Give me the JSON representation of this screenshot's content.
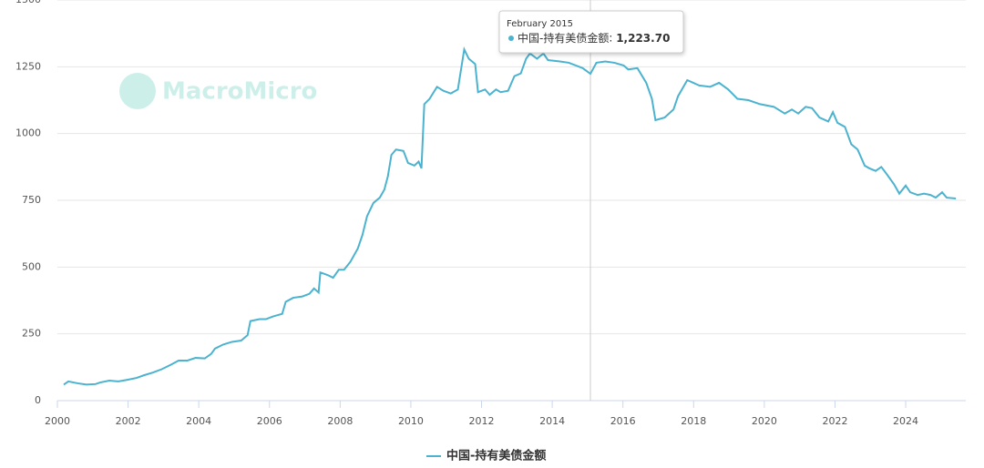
{
  "chart_data": {
    "type": "line",
    "watermark": "MacroMicro",
    "x": [
      2000.18,
      2000.31,
      2000.57,
      2000.82,
      2001.08,
      2001.21,
      2001.47,
      2001.73,
      2001.98,
      2002.24,
      2002.45,
      2002.7,
      2002.96,
      2003.22,
      2003.43,
      2003.68,
      2003.91,
      2004.17,
      2004.35,
      2004.46,
      2004.69,
      2004.94,
      2005.2,
      2005.38,
      2005.46,
      2005.72,
      2005.9,
      2006.1,
      2006.36,
      2006.46,
      2006.67,
      2006.93,
      2007.13,
      2007.26,
      2007.39,
      2007.44,
      2007.65,
      2007.8,
      2007.96,
      2008.11,
      2008.29,
      2008.5,
      2008.63,
      2008.76,
      2008.94,
      2009.12,
      2009.25,
      2009.35,
      2009.45,
      2009.58,
      2009.79,
      2009.92,
      2010.1,
      2010.22,
      2010.3,
      2010.38,
      2010.53,
      2010.74,
      2010.92,
      2011.13,
      2011.33,
      2011.51,
      2011.64,
      2011.82,
      2011.9,
      2012.1,
      2012.23,
      2012.41,
      2012.54,
      2012.75,
      2012.93,
      2013.11,
      2013.26,
      2013.37,
      2013.57,
      2013.75,
      2013.88,
      2014.22,
      2014.47,
      2014.86,
      2015.08,
      2015.25,
      2015.5,
      2015.76,
      2016.02,
      2016.15,
      2016.41,
      2016.66,
      2016.82,
      2016.92,
      2017.18,
      2017.43,
      2017.56,
      2017.82,
      2018.16,
      2018.47,
      2018.72,
      2018.98,
      2019.24,
      2019.55,
      2019.88,
      2020.27,
      2020.58,
      2020.78,
      2020.96,
      2021.17,
      2021.35,
      2021.56,
      2021.81,
      2021.94,
      2022.07,
      2022.28,
      2022.46,
      2022.64,
      2022.84,
      2022.97,
      2023.15,
      2023.31,
      2023.48,
      2023.67,
      2023.82,
      2024.0,
      2024.13,
      2024.34,
      2024.52,
      2024.7,
      2024.85,
      2025.03,
      2025.16,
      2025.42
    ],
    "series": [
      {
        "name": "中国-持有美债金额",
        "color": "#4bb3cf",
        "values": [
          60,
          72,
          65,
          60,
          62,
          68,
          75,
          72,
          78,
          85,
          95,
          105,
          118,
          135,
          150,
          150,
          160,
          158,
          175,
          195,
          210,
          220,
          225,
          245,
          298,
          305,
          305,
          315,
          325,
          370,
          385,
          390,
          400,
          420,
          405,
          480,
          470,
          460,
          490,
          490,
          520,
          570,
          620,
          690,
          740,
          760,
          790,
          840,
          920,
          940,
          935,
          890,
          880,
          895,
          870,
          1110,
          1130,
          1175,
          1160,
          1150,
          1165,
          1315,
          1280,
          1260,
          1155,
          1165,
          1145,
          1165,
          1155,
          1160,
          1215,
          1225,
          1280,
          1300,
          1280,
          1300,
          1275,
          1270,
          1265,
          1245,
          1223.7,
          1265,
          1270,
          1265,
          1255,
          1240,
          1245,
          1190,
          1130,
          1050,
          1060,
          1090,
          1140,
          1200,
          1180,
          1175,
          1190,
          1165,
          1130,
          1125,
          1110,
          1100,
          1075,
          1090,
          1075,
          1100,
          1095,
          1060,
          1045,
          1080,
          1040,
          1025,
          960,
          940,
          880,
          870,
          860,
          875,
          845,
          810,
          775,
          805,
          780,
          770,
          775,
          770,
          760,
          780,
          760,
          757
        ]
      }
    ],
    "xlim": [
      2000,
      2025.7
    ],
    "xticks": [
      2000,
      2002,
      2004,
      2006,
      2008,
      2010,
      2012,
      2014,
      2016,
      2018,
      2020,
      2022,
      2024
    ],
    "ylim": [
      0,
      1500
    ],
    "yticks": [
      0,
      250,
      500,
      750,
      1000,
      {
        "value": 1250,
        "label": "1250"
      },
      {
        "value": 1500,
        "label": "1500"
      }
    ],
    "grid": true,
    "tooltip": {
      "title": "February 2015",
      "x": 2015.08,
      "value": 1223.7,
      "label": "1,223.70"
    }
  }
}
